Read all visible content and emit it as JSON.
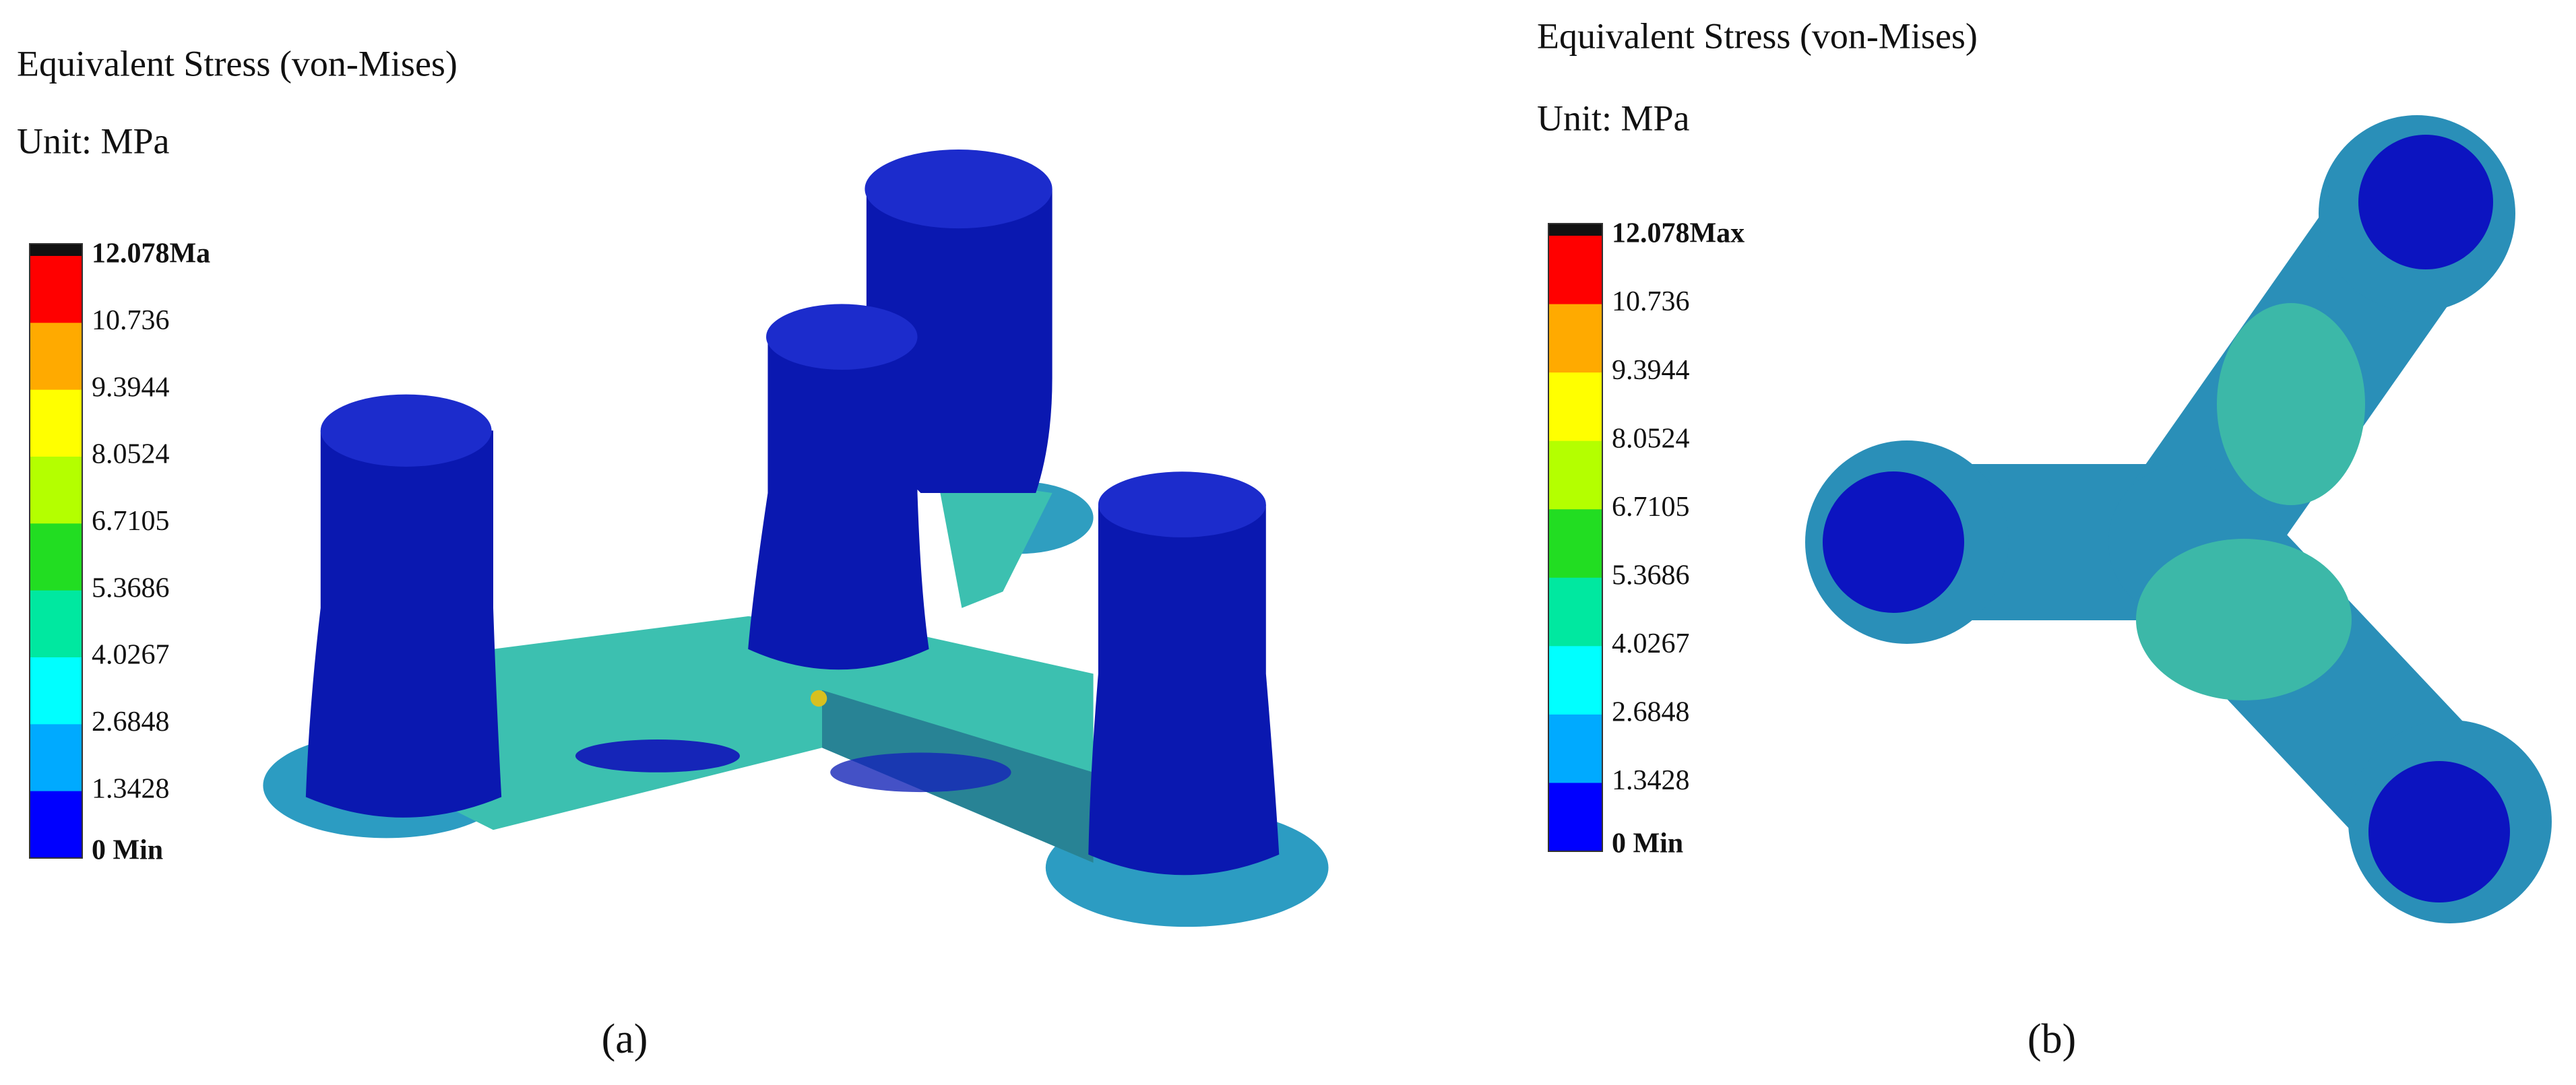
{
  "panels": [
    {
      "title": "Equivalent Stress (von-Mises)",
      "unit": "Unit: MPa",
      "legend_labels": [
        "12.078Ma",
        "10.736",
        "9.3944",
        "8.0524",
        "6.7105",
        "5.3686",
        "4.0267",
        "2.6848",
        "1.3428",
        "0 Min"
      ],
      "caption": "(a)"
    },
    {
      "title": "Equivalent Stress (von-Mises)",
      "unit": "Unit: MPa",
      "legend_labels": [
        "12.078Max",
        "10.736",
        "9.3944",
        "8.0524",
        "6.7105",
        "5.3686",
        "4.0267",
        "2.6848",
        "1.3428",
        "0 Min"
      ],
      "caption": "(b)"
    }
  ],
  "colorbar_colors": [
    "#ff0000",
    "#ffaa00",
    "#ffff00",
    "#b4ff00",
    "#22dd22",
    "#00e8a0",
    "#00ffff",
    "#00aaff",
    "#0000ff"
  ]
}
